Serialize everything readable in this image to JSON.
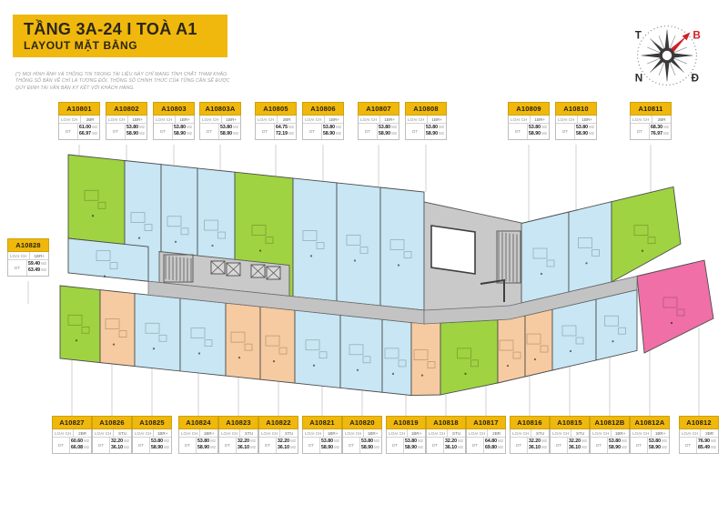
{
  "header": {
    "title": "TẦNG 3A-24 I TOÀ A1",
    "subtitle": "LAYOUT MẶT BẰNG",
    "disclaimer_lines": [
      "(*) MỌI HÌNH ẢNH VÀ THÔNG TIN TRONG TÀI LIỆU NÀY CHỈ MANG TÍNH CHẤT THAM KHẢO.",
      "THÔNG SỐ BẢN VẼ CHỈ LÀ TƯƠNG ĐỐI, THÔNG SỐ CHÍNH THỨC CỦA TỪNG CĂN SẼ ĐƯỢC",
      "QUY ĐỊNH TẠI VĂN BẢN KÝ KẾT VỚI KHÁCH HÀNG."
    ]
  },
  "compass": {
    "west": "T",
    "north": "B",
    "south": "N",
    "east": "Đ"
  },
  "labels": {
    "type_label": "LOẠI CH",
    "area_label": "DT",
    "area_unit": "M2"
  },
  "legend_colors": {
    "2BR": "#9FD341",
    "1BR+": "#C8E6F4",
    "STU": "#F6CBA1",
    "3BR": "#EF6FA6",
    "core": "#C9C9C9",
    "corridor": "#C3C3C3",
    "banner_yellow": "#F0B80D",
    "compass_red": "#CF2027"
  },
  "units": {
    "top": [
      {
        "code": "A10801",
        "type": "2BR",
        "areas": [
          "61.00",
          "66.97"
        ]
      },
      {
        "code": "A10802",
        "type": "1BR+",
        "areas": [
          "53.80",
          "58.90"
        ]
      },
      {
        "code": "A10803",
        "type": "1BR+",
        "areas": [
          "53.80",
          "58.90"
        ]
      },
      {
        "code": "A10803A",
        "type": "1BR+",
        "areas": [
          "53.80",
          "58.90"
        ]
      },
      {
        "code": "A10805",
        "type": "2BR",
        "areas": [
          "64.75",
          "72.19"
        ]
      },
      {
        "code": "A10806",
        "type": "1BR+",
        "areas": [
          "53.80",
          "58.90"
        ]
      },
      {
        "code": "A10807",
        "type": "1BR+",
        "areas": [
          "53.80",
          "58.90"
        ]
      },
      {
        "code": "A10808",
        "type": "1BR+",
        "areas": [
          "53.80",
          "58.90"
        ]
      },
      {
        "code": "A10809",
        "type": "1BR+",
        "areas": [
          "53.80",
          "58.90"
        ]
      },
      {
        "code": "A10810",
        "type": "1BR+",
        "areas": [
          "53.80",
          "58.90"
        ]
      },
      {
        "code": "A10811",
        "type": "2BR",
        "areas": [
          "68.30",
          "76.97"
        ]
      }
    ],
    "left": [
      {
        "code": "A10828",
        "type": "1BR+",
        "areas": [
          "59.40",
          "63.49"
        ]
      }
    ],
    "bottom": [
      {
        "code": "A10827",
        "type": "2BR",
        "areas": [
          "60.60",
          "66.08"
        ]
      },
      {
        "code": "A10826",
        "type": "STU",
        "areas": [
          "32.20",
          "36.10"
        ]
      },
      {
        "code": "A10825",
        "type": "1BR+",
        "areas": [
          "53.80",
          "58.90"
        ]
      },
      {
        "code": "A10824",
        "type": "1BR+",
        "areas": [
          "53.80",
          "58.90"
        ]
      },
      {
        "code": "A10823",
        "type": "STU",
        "areas": [
          "32.20",
          "36.10"
        ]
      },
      {
        "code": "A10822",
        "type": "STU",
        "areas": [
          "32.20",
          "36.10"
        ]
      },
      {
        "code": "A10821",
        "type": "1BR+",
        "areas": [
          "53.80",
          "58.90"
        ]
      },
      {
        "code": "A10820",
        "type": "1BR+",
        "areas": [
          "53.80",
          "58.90"
        ]
      },
      {
        "code": "A10819",
        "type": "1BR+",
        "areas": [
          "53.80",
          "58.90"
        ]
      },
      {
        "code": "A10818",
        "type": "STU",
        "areas": [
          "32.20",
          "36.10"
        ]
      },
      {
        "code": "A10817",
        "type": "2BR",
        "areas": [
          "64.80",
          "69.80"
        ]
      },
      {
        "code": "A10816",
        "type": "STU",
        "areas": [
          "32.20",
          "36.10"
        ]
      },
      {
        "code": "A10815",
        "type": "STU",
        "areas": [
          "32.20",
          "36.10"
        ]
      },
      {
        "code": "A10812B",
        "type": "1BR+",
        "areas": [
          "53.80",
          "58.90"
        ]
      },
      {
        "code": "A10812A",
        "type": "1BR+",
        "areas": [
          "53.80",
          "58.90"
        ]
      },
      {
        "code": "A10812",
        "type": "3BR",
        "areas": [
          "76.90",
          "85.49"
        ]
      }
    ]
  }
}
